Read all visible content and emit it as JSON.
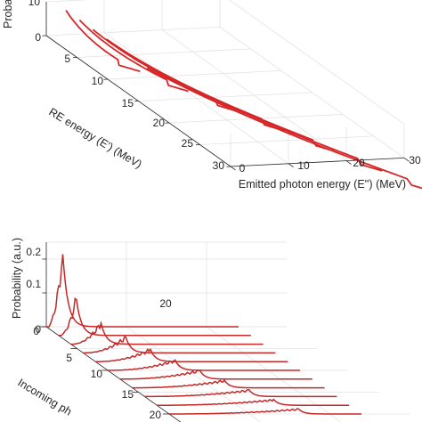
{
  "chart_data": [
    {
      "type": "line",
      "view": "3d-waterfall",
      "title": "",
      "xlabel": "Emitted photon energy (E'') (MeV)",
      "ylabel": "RE energy (E') (MeV)",
      "zlabel": "Proba",
      "x_ticks": [
        "0",
        "10",
        "20",
        "30"
      ],
      "y_ticks": [
        "0",
        "5",
        "10",
        "15",
        "20",
        "25",
        "30"
      ],
      "z_ticks": [
        "0",
        "10"
      ],
      "xlim": [
        0,
        30
      ],
      "ylim": [
        0,
        30
      ],
      "grid": true,
      "line_color": "#d62728",
      "series": [
        {
          "re_energy": 0
        },
        {
          "re_energy": 5
        },
        {
          "re_energy": 10
        },
        {
          "re_energy": 15
        },
        {
          "re_energy": 20
        },
        {
          "re_energy": 25
        },
        {
          "re_energy": 30
        }
      ]
    },
    {
      "type": "line",
      "view": "3d-waterfall",
      "title": "",
      "ylabel": "Incoming ph",
      "zlabel": "Probability (a.u.)",
      "x_ticks": [
        "20"
      ],
      "y_ticks": [
        "0",
        "5",
        "10",
        "15",
        "20"
      ],
      "z_ticks": [
        "0",
        "0.1",
        "0.2"
      ],
      "zlim": [
        0,
        0.25
      ],
      "grid": true,
      "line_color": "#c62828",
      "series": [
        {
          "incoming": 0,
          "peak": 0.235
        },
        {
          "incoming": 2,
          "peak": 0.12
        },
        {
          "incoming": 4,
          "peak": 0.07
        },
        {
          "incoming": 6,
          "peak": 0.052
        },
        {
          "incoming": 8,
          "peak": 0.04
        },
        {
          "incoming": 10,
          "peak": 0.033
        },
        {
          "incoming": 12,
          "peak": 0.028
        },
        {
          "incoming": 14,
          "peak": 0.024
        },
        {
          "incoming": 16,
          "peak": 0.021
        },
        {
          "incoming": 18,
          "peak": 0.018
        },
        {
          "incoming": 20,
          "peak": 0.016
        }
      ]
    }
  ]
}
